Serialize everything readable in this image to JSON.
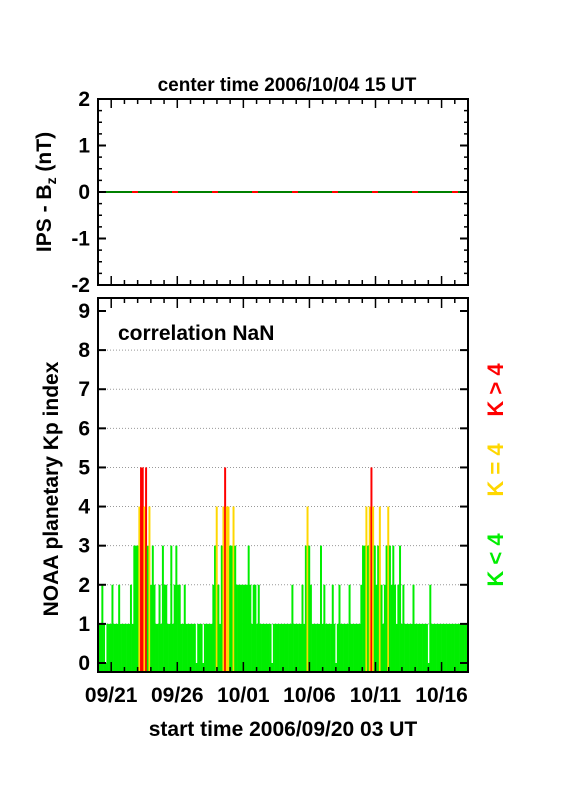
{
  "chart_data": [
    {
      "type": "line",
      "title": "center time 2006/10/04 15 UT",
      "ylabel_main": "IPS - B",
      "ylabel_sub": "z",
      "ylabel_unit": " (nT)",
      "ylim": [
        -2,
        2
      ],
      "yticks": [
        "2",
        "1",
        "0",
        "-1",
        "-2"
      ],
      "series": [
        {
          "color": "#008000",
          "x_start_days": 0,
          "x_end_days": 28,
          "value": 0
        }
      ]
    },
    {
      "type": "bar",
      "ylabel": "NOAA planetary Kp index",
      "xlabel": "start time 2006/09/20 03 UT",
      "annotation": "correlation NaN",
      "ylim": [
        0,
        9
      ],
      "yticks": [
        "9",
        "8",
        "7",
        "6",
        "5",
        "4",
        "3",
        "2",
        "1",
        "0"
      ],
      "xtick_labels": [
        "09/21",
        "09/26",
        "10/01",
        "10/06",
        "10/11",
        "10/16"
      ],
      "grid": true,
      "legend": [
        {
          "label": "K < 4",
          "color": "#00ee00"
        },
        {
          "label": "K = 4",
          "color": "#ffd700"
        },
        {
          "label": "K > 4",
          "color": "#ff0000"
        }
      ],
      "kp_3hourly": [
        1,
        1,
        2,
        1,
        0,
        1,
        1,
        1,
        2,
        1,
        1,
        1,
        2,
        1,
        1,
        1,
        1,
        1,
        1,
        2,
        1,
        3,
        3,
        3,
        4,
        5,
        5,
        4,
        5,
        3,
        4,
        2,
        3,
        2,
        1,
        1,
        2,
        1,
        3,
        2,
        2,
        1,
        1,
        3,
        1,
        2,
        3,
        2,
        2,
        1,
        1,
        2,
        1,
        1,
        1,
        1,
        1,
        1,
        0,
        1,
        1,
        1,
        0,
        1,
        1,
        1,
        1,
        1,
        2,
        3,
        4,
        2,
        1,
        3,
        4,
        5,
        4,
        4,
        3,
        3,
        4,
        3,
        2,
        2,
        2,
        2,
        2,
        2,
        2,
        3,
        2,
        1,
        2,
        2,
        1,
        2,
        1,
        1,
        1,
        1,
        1,
        1,
        1,
        0,
        1,
        1,
        1,
        1,
        1,
        1,
        1,
        1,
        1,
        1,
        1,
        2,
        1,
        1,
        1,
        1,
        1,
        2,
        1,
        3,
        4,
        3,
        2,
        1,
        1,
        1,
        1,
        1,
        3,
        1,
        2,
        1,
        1,
        1,
        1,
        2,
        1,
        0,
        1,
        2,
        1,
        1,
        1,
        1,
        1,
        2,
        1,
        1,
        1,
        1,
        1,
        1,
        2,
        3,
        3,
        4,
        3,
        4,
        5,
        4,
        3,
        2,
        3,
        4,
        2,
        1,
        2,
        3,
        4,
        3,
        2,
        3,
        2,
        1,
        2,
        3,
        1,
        2,
        1,
        1,
        1,
        1,
        1,
        2,
        1,
        1,
        1,
        1,
        1,
        1,
        1,
        1,
        0,
        2,
        1,
        1,
        1,
        1,
        1,
        1,
        1,
        1,
        1,
        1,
        1,
        1,
        1,
        1,
        1,
        1,
        1,
        1,
        1,
        1,
        1,
        1
      ]
    }
  ]
}
